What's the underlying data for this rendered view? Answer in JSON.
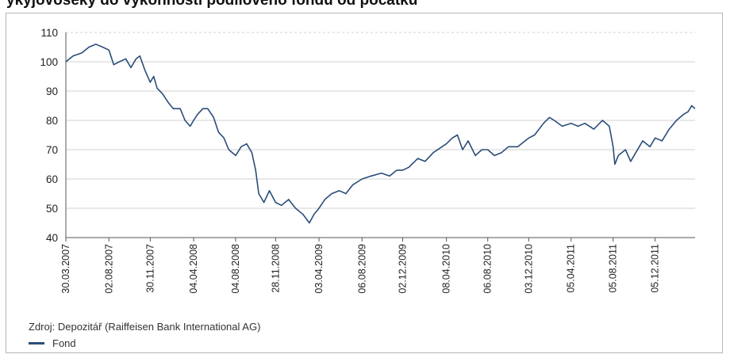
{
  "header": {
    "partial_title": "ýkyjovoseky do výkonnosti podílového fondu od počátku"
  },
  "source": "Zdroj: Depozitář (Raiffeisen Bank International AG)",
  "legend": {
    "series_label": "Fond"
  },
  "colors": {
    "series": "#2a4d78",
    "grid": "#d0d0d0",
    "axis": "#555555"
  },
  "chart_data": {
    "type": "line",
    "title": "",
    "xlabel": "",
    "ylabel": "",
    "ylim": [
      40,
      110
    ],
    "yticks": [
      40,
      50,
      60,
      70,
      80,
      90,
      100,
      110
    ],
    "grid": true,
    "x_ticks": [
      "30.03.2007",
      "02.08.2007",
      "30.11.2007",
      "04.04.2008",
      "04.08.2008",
      "28.11.2008",
      "03.04.2009",
      "06.08.2009",
      "02.12.2009",
      "08.04.2010",
      "06.08.2010",
      "03.12.2010",
      "05.04.2011",
      "05.08.2011",
      "05.12.2011"
    ],
    "x_range": [
      "2007-03-30",
      "2012-03-30"
    ],
    "series": [
      {
        "name": "Fond",
        "points": [
          [
            "2007-03-30",
            100
          ],
          [
            "2007-04-20",
            102
          ],
          [
            "2007-05-15",
            103
          ],
          [
            "2007-06-05",
            105
          ],
          [
            "2007-06-25",
            106
          ],
          [
            "2007-07-15",
            105
          ],
          [
            "2007-08-02",
            104
          ],
          [
            "2007-08-16",
            99
          ],
          [
            "2007-09-01",
            100
          ],
          [
            "2007-09-20",
            101
          ],
          [
            "2007-10-05",
            98
          ],
          [
            "2007-10-20",
            101
          ],
          [
            "2007-10-31",
            102
          ],
          [
            "2007-11-15",
            97
          ],
          [
            "2007-11-30",
            93
          ],
          [
            "2007-12-10",
            95
          ],
          [
            "2007-12-20",
            91
          ],
          [
            "2008-01-05",
            89
          ],
          [
            "2008-01-22",
            86
          ],
          [
            "2008-02-05",
            84
          ],
          [
            "2008-02-25",
            84
          ],
          [
            "2008-03-10",
            80
          ],
          [
            "2008-03-25",
            78
          ],
          [
            "2008-04-04",
            80
          ],
          [
            "2008-04-15",
            82
          ],
          [
            "2008-05-01",
            84
          ],
          [
            "2008-05-15",
            84
          ],
          [
            "2008-06-01",
            81
          ],
          [
            "2008-06-15",
            76
          ],
          [
            "2008-07-01",
            74
          ],
          [
            "2008-07-15",
            70
          ],
          [
            "2008-08-04",
            68
          ],
          [
            "2008-08-20",
            71
          ],
          [
            "2008-09-05",
            72
          ],
          [
            "2008-09-20",
            69
          ],
          [
            "2008-10-01",
            63
          ],
          [
            "2008-10-10",
            55
          ],
          [
            "2008-10-25",
            52
          ],
          [
            "2008-11-10",
            56
          ],
          [
            "2008-11-28",
            52
          ],
          [
            "2008-12-15",
            51
          ],
          [
            "2009-01-05",
            53
          ],
          [
            "2009-01-25",
            50
          ],
          [
            "2009-02-15",
            48
          ],
          [
            "2009-03-06",
            45
          ],
          [
            "2009-03-20",
            48
          ],
          [
            "2009-04-03",
            50
          ],
          [
            "2009-04-20",
            53
          ],
          [
            "2009-05-10",
            55
          ],
          [
            "2009-06-01",
            56
          ],
          [
            "2009-06-20",
            55
          ],
          [
            "2009-07-10",
            58
          ],
          [
            "2009-08-06",
            60
          ],
          [
            "2009-09-01",
            61
          ],
          [
            "2009-10-01",
            62
          ],
          [
            "2009-10-25",
            61
          ],
          [
            "2009-11-15",
            63
          ],
          [
            "2009-12-02",
            63
          ],
          [
            "2009-12-20",
            64
          ],
          [
            "2010-01-15",
            67
          ],
          [
            "2010-02-05",
            66
          ],
          [
            "2010-03-01",
            69
          ],
          [
            "2010-04-08",
            72
          ],
          [
            "2010-04-25",
            74
          ],
          [
            "2010-05-10",
            75
          ],
          [
            "2010-05-25",
            70
          ],
          [
            "2010-06-10",
            73
          ],
          [
            "2010-07-01",
            68
          ],
          [
            "2010-07-20",
            70
          ],
          [
            "2010-08-06",
            70
          ],
          [
            "2010-08-25",
            68
          ],
          [
            "2010-09-15",
            69
          ],
          [
            "2010-10-05",
            71
          ],
          [
            "2010-11-01",
            71
          ],
          [
            "2010-12-03",
            74
          ],
          [
            "2010-12-20",
            75
          ],
          [
            "2011-01-15",
            79
          ],
          [
            "2011-02-01",
            81
          ],
          [
            "2011-02-15",
            80
          ],
          [
            "2011-03-10",
            78
          ],
          [
            "2011-04-05",
            79
          ],
          [
            "2011-04-25",
            78
          ],
          [
            "2011-05-15",
            79
          ],
          [
            "2011-06-10",
            77
          ],
          [
            "2011-07-05",
            80
          ],
          [
            "2011-07-25",
            78
          ],
          [
            "2011-08-05",
            71
          ],
          [
            "2011-08-10",
            65
          ],
          [
            "2011-08-20",
            68
          ],
          [
            "2011-09-10",
            70
          ],
          [
            "2011-09-25",
            66
          ],
          [
            "2011-10-10",
            69
          ],
          [
            "2011-10-30",
            73
          ],
          [
            "2011-11-20",
            71
          ],
          [
            "2011-12-05",
            74
          ],
          [
            "2011-12-25",
            73
          ],
          [
            "2012-01-15",
            77
          ],
          [
            "2012-02-05",
            80
          ],
          [
            "2012-02-25",
            82
          ],
          [
            "2012-03-10",
            83
          ],
          [
            "2012-03-20",
            85
          ],
          [
            "2012-03-30",
            84
          ]
        ]
      }
    ]
  }
}
